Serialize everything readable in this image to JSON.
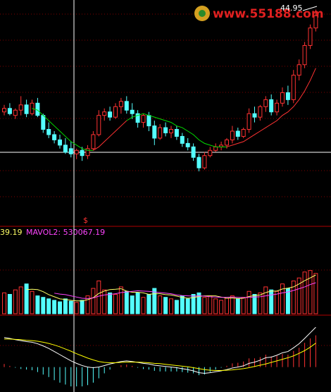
{
  "chart_data": {
    "type": "candlestick",
    "high_label": "44.95",
    "mavol1_label": "39.19",
    "mavol2_label": "MAVOL2: 530067.19",
    "signal": "$",
    "watermark": "www.55188.com",
    "up_color": "#ff3232",
    "down_color": "#54ffff",
    "ylim": [
      33,
      45.5
    ],
    "ohlc": [
      [
        39.1,
        39.5,
        38.9,
        39.3
      ],
      [
        39.3,
        39.6,
        38.9,
        39.0
      ],
      [
        38.9,
        39.3,
        38.7,
        39.2
      ],
      [
        39.2,
        40.0,
        38.9,
        39.5
      ],
      [
        39.5,
        39.8,
        38.8,
        39.0
      ],
      [
        39.0,
        39.8,
        38.9,
        39.6
      ],
      [
        39.6,
        39.9,
        38.8,
        38.9
      ],
      [
        38.9,
        39.0,
        37.9,
        38.1
      ],
      [
        38.1,
        38.5,
        37.6,
        37.8
      ],
      [
        37.8,
        38.0,
        37.3,
        37.5
      ],
      [
        37.5,
        37.8,
        37.0,
        37.2
      ],
      [
        37.2,
        37.6,
        36.7,
        36.8
      ],
      [
        37.0,
        37.4,
        36.5,
        36.7
      ],
      [
        36.7,
        37.0,
        36.4,
        36.9
      ],
      [
        36.9,
        37.1,
        36.3,
        36.6
      ],
      [
        36.6,
        37.2,
        36.4,
        37.0
      ],
      [
        37.0,
        38.0,
        36.9,
        37.8
      ],
      [
        37.8,
        39.2,
        37.7,
        38.9
      ],
      [
        38.9,
        39.3,
        38.6,
        39.1
      ],
      [
        39.1,
        39.4,
        38.6,
        38.8
      ],
      [
        38.8,
        39.6,
        38.7,
        39.4
      ],
      [
        39.4,
        39.9,
        39.0,
        39.7
      ],
      [
        39.7,
        40.0,
        39.0,
        39.2
      ],
      [
        39.2,
        39.6,
        38.7,
        39.0
      ],
      [
        39.0,
        39.2,
        38.2,
        38.5
      ],
      [
        38.5,
        39.0,
        38.2,
        38.9
      ],
      [
        38.9,
        39.1,
        38.0,
        38.3
      ],
      [
        38.3,
        38.6,
        37.2,
        37.6
      ],
      [
        37.6,
        38.4,
        37.5,
        38.2
      ],
      [
        38.2,
        38.5,
        37.7,
        37.9
      ],
      [
        37.9,
        38.3,
        37.6,
        38.1
      ],
      [
        38.1,
        38.3,
        37.5,
        37.7
      ],
      [
        37.7,
        37.9,
        37.1,
        37.3
      ],
      [
        37.3,
        37.6,
        36.9,
        37.1
      ],
      [
        37.1,
        37.3,
        36.3,
        36.5
      ],
      [
        36.5,
        36.7,
        35.7,
        35.9
      ],
      [
        35.9,
        36.8,
        35.8,
        36.6
      ],
      [
        36.6,
        37.1,
        36.5,
        36.9
      ],
      [
        36.9,
        37.3,
        36.8,
        37.1
      ],
      [
        37.1,
        37.4,
        36.9,
        37.2
      ],
      [
        37.2,
        37.6,
        37.0,
        37.5
      ],
      [
        37.5,
        38.3,
        37.3,
        38.0
      ],
      [
        38.0,
        38.2,
        37.5,
        37.7
      ],
      [
        37.7,
        38.2,
        37.6,
        38.1
      ],
      [
        38.1,
        39.3,
        37.9,
        39.0
      ],
      [
        39.0,
        39.4,
        38.5,
        38.8
      ],
      [
        38.8,
        39.5,
        38.6,
        39.4
      ],
      [
        39.4,
        40.0,
        39.1,
        39.8
      ],
      [
        39.8,
        40.1,
        38.9,
        39.1
      ],
      [
        39.1,
        39.8,
        38.9,
        39.6
      ],
      [
        39.6,
        40.5,
        39.4,
        40.2
      ],
      [
        40.2,
        40.6,
        39.5,
        39.8
      ],
      [
        39.8,
        41.5,
        39.6,
        41.2
      ],
      [
        41.2,
        42.1,
        40.9,
        41.8
      ],
      [
        41.8,
        43.1,
        41.6,
        42.9
      ],
      [
        42.9,
        44.1,
        42.7,
        43.9
      ],
      [
        43.9,
        44.95,
        43.7,
        44.6
      ]
    ],
    "ma_series": [
      {
        "color": "#00dd00",
        "values": [
          null,
          null,
          null,
          null,
          null,
          39.3,
          39.2,
          38.9,
          38.6,
          38.3,
          38.0,
          37.7,
          37.4,
          37.2,
          37.0,
          36.9,
          36.9,
          null,
          null,
          null,
          null,
          null,
          38.6,
          38.8,
          38.9,
          39.0,
          38.9,
          38.8,
          38.7,
          38.6,
          38.5,
          38.3,
          38.2,
          38.0,
          37.8,
          37.5,
          37.3,
          37.2,
          37.1,
          37.1,
          37.1,
          null,
          null,
          null,
          null,
          null,
          null,
          null,
          null,
          null,
          null,
          null,
          null,
          null,
          null,
          null,
          null
        ]
      },
      {
        "color": "#ff3232",
        "values": [
          null,
          null,
          null,
          null,
          null,
          null,
          null,
          null,
          null,
          null,
          null,
          null,
          null,
          null,
          null,
          null,
          36.9,
          37.1,
          37.4,
          37.7,
          38.0,
          38.3,
          38.6,
          null,
          null,
          null,
          null,
          null,
          null,
          null,
          null,
          null,
          null,
          null,
          null,
          null,
          null,
          null,
          null,
          null,
          37.1,
          37.2,
          37.3,
          37.4,
          37.6,
          37.8,
          38.0,
          38.2,
          38.4,
          38.6,
          38.9,
          39.1,
          39.4,
          39.8,
          40.3,
          40.9,
          41.6
        ]
      }
    ],
    "volume": [
      700000,
      650000,
      800000,
      900000,
      1000000,
      750000,
      600000,
      550000,
      500000,
      450000,
      400000,
      500000,
      420000,
      380000,
      450000,
      600000,
      850000,
      1100000,
      800000,
      700000,
      650000,
      900000,
      750000,
      600000,
      700000,
      550000,
      650000,
      850000,
      600000,
      550000,
      500000,
      450000,
      600000,
      500000,
      650000,
      700000,
      550000,
      600000,
      500000,
      450000,
      520000,
      600000,
      500000,
      550000,
      750000,
      650000,
      700000,
      900000,
      800000,
      750000,
      1000000,
      850000,
      1100000,
      1200000,
      1400000,
      1450000,
      1350000
    ],
    "vol_ylim": [
      0,
      2600000
    ],
    "vol_ma": [
      {
        "color": "#ffff66",
        "values": [
          null,
          null,
          null,
          null,
          810000,
          820000,
          810000,
          740000,
          640000,
          570000,
          500000,
          480000,
          450000,
          430000,
          430000,
          470000,
          540000,
          680000,
          760000,
          810000,
          820000,
          840000,
          760000,
          720000,
          720000,
          700000,
          650000,
          670000,
          670000,
          640000,
          630000,
          590000,
          550000,
          520000,
          540000,
          580000,
          600000,
          600000,
          600000,
          560000,
          520000,
          530000,
          510000,
          520000,
          580000,
          610000,
          630000,
          710000,
          760000,
          760000,
          830000,
          860000,
          900000,
          1000000,
          1110000,
          1200000,
          1300000
        ]
      },
      {
        "color": "#ff44ff",
        "values": [
          null,
          null,
          null,
          null,
          null,
          null,
          null,
          null,
          null,
          690000,
          660000,
          640000,
          600000,
          560000,
          520000,
          510000,
          530000,
          590000,
          630000,
          650000,
          670000,
          710000,
          730000,
          750000,
          770000,
          760000,
          750000,
          730000,
          710000,
          690000,
          670000,
          630000,
          610000,
          600000,
          590000,
          600000,
          590000,
          570000,
          560000,
          550000,
          550000,
          560000,
          550000,
          540000,
          550000,
          560000,
          570000,
          600000,
          630000,
          660000,
          700000,
          730000,
          780000,
          840000,
          900000,
          980000,
          1040000
        ]
      }
    ],
    "macd_ylim": [
      -0.8,
      1.6
    ],
    "macd_hist": [
      0.1,
      0.04,
      -0.02,
      -0.06,
      -0.08,
      -0.1,
      -0.16,
      -0.24,
      -0.32,
      -0.42,
      -0.5,
      -0.56,
      -0.62,
      -0.62,
      -0.62,
      -0.58,
      -0.5,
      -0.36,
      -0.2,
      -0.08,
      0.0,
      0.06,
      0.08,
      0.04,
      -0.02,
      -0.06,
      -0.08,
      -0.12,
      -0.14,
      -0.14,
      -0.14,
      -0.14,
      -0.16,
      -0.18,
      -0.2,
      -0.26,
      -0.24,
      -0.16,
      -0.08,
      -0.02,
      0.04,
      0.12,
      0.14,
      0.18,
      0.28,
      0.28,
      0.32,
      0.4,
      0.34,
      0.36,
      0.42,
      0.4,
      0.52,
      0.62,
      0.78,
      0.92,
      1.02
    ],
    "macd_lines": [
      {
        "color": "#ffffff",
        "values": [
          0.95,
          0.92,
          0.88,
          0.85,
          0.82,
          0.8,
          0.75,
          0.68,
          0.6,
          0.5,
          0.4,
          0.3,
          0.2,
          0.12,
          0.05,
          0.0,
          -0.02,
          0.0,
          0.05,
          0.1,
          0.14,
          0.18,
          0.2,
          0.18,
          0.15,
          0.12,
          0.1,
          0.06,
          0.04,
          0.02,
          0.0,
          -0.02,
          -0.05,
          -0.08,
          -0.12,
          -0.18,
          -0.2,
          -0.18,
          -0.15,
          -0.12,
          -0.08,
          -0.03,
          0.0,
          0.04,
          0.12,
          0.16,
          0.22,
          0.3,
          0.32,
          0.38,
          0.46,
          0.5,
          0.62,
          0.75,
          0.92,
          1.1,
          1.28
        ]
      },
      {
        "color": "#ffff00",
        "values": [
          0.9,
          0.9,
          0.89,
          0.88,
          0.86,
          0.85,
          0.83,
          0.8,
          0.76,
          0.71,
          0.65,
          0.58,
          0.51,
          0.43,
          0.36,
          0.29,
          0.23,
          0.18,
          0.15,
          0.14,
          0.14,
          0.15,
          0.16,
          0.16,
          0.16,
          0.15,
          0.14,
          0.12,
          0.11,
          0.09,
          0.07,
          0.05,
          0.03,
          0.01,
          -0.02,
          -0.05,
          -0.08,
          -0.1,
          -0.11,
          -0.11,
          -0.1,
          -0.09,
          -0.07,
          -0.05,
          -0.02,
          0.02,
          0.06,
          0.1,
          0.15,
          0.2,
          0.25,
          0.3,
          0.36,
          0.44,
          0.53,
          0.64,
          0.77
        ]
      }
    ]
  }
}
